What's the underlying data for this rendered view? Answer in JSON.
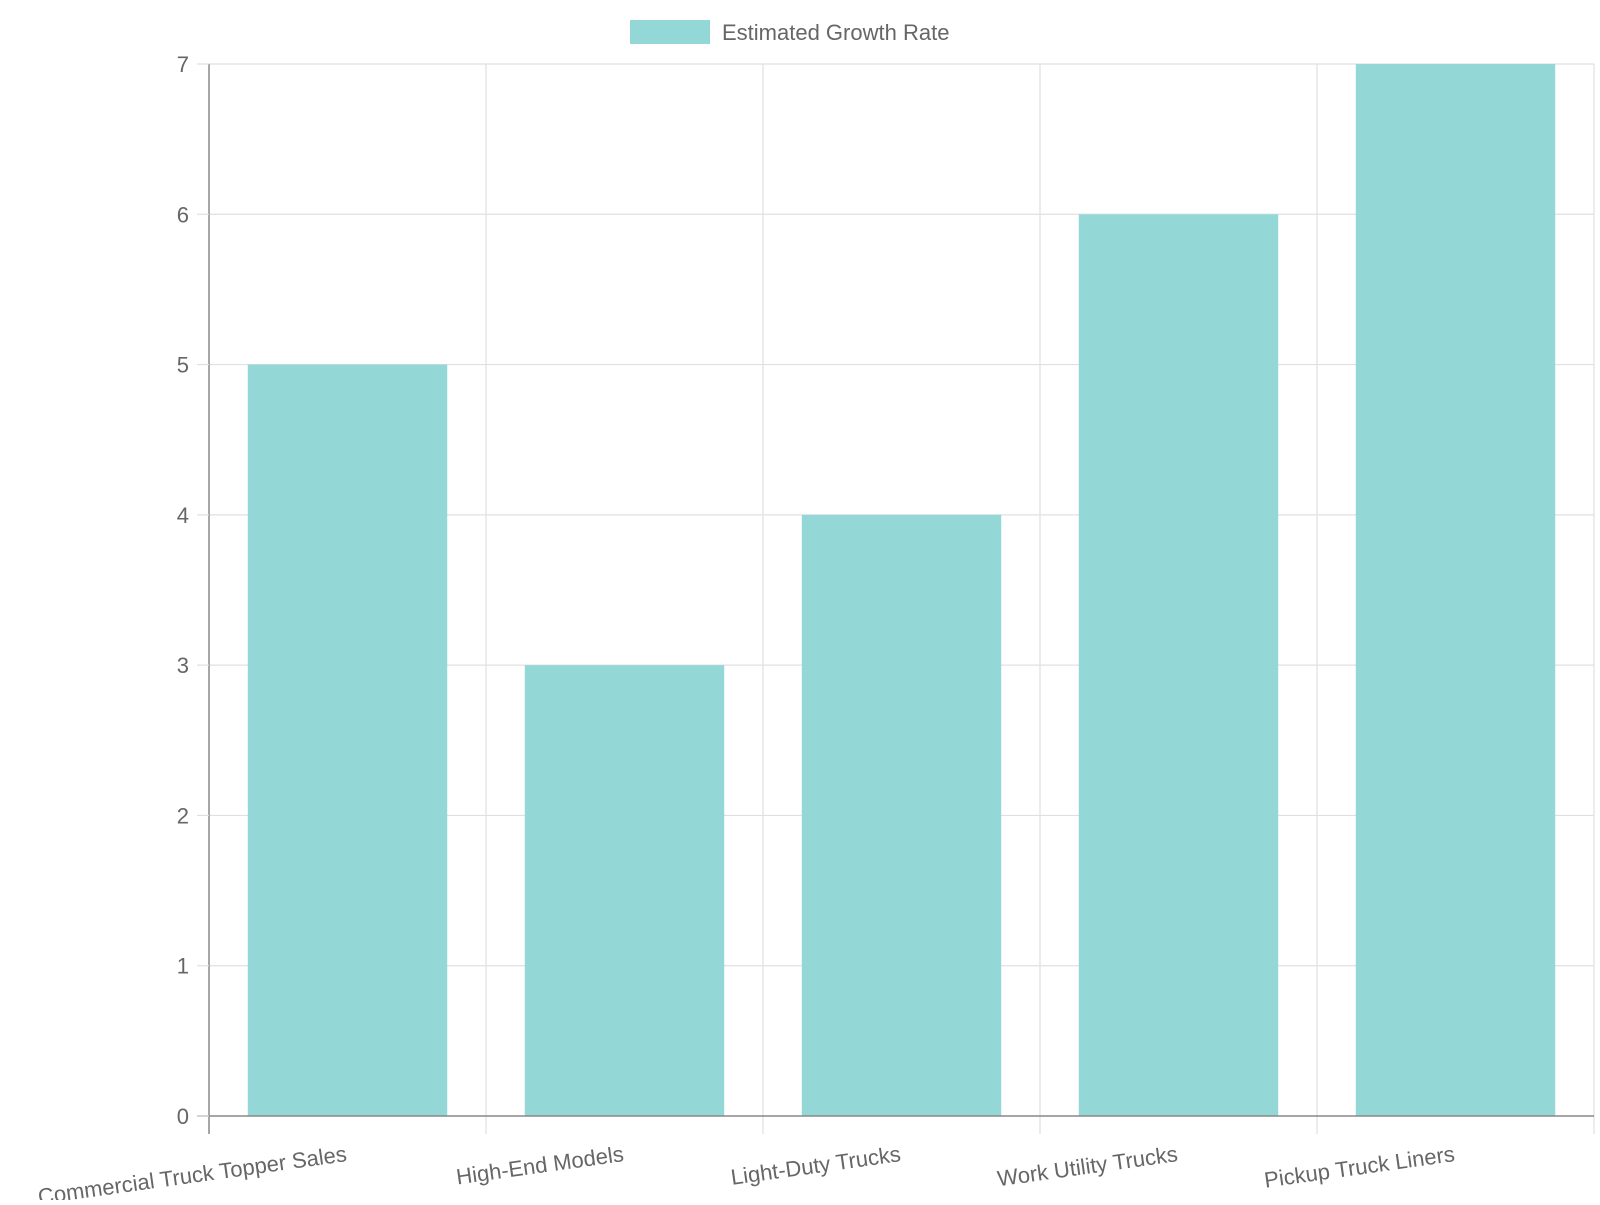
{
  "chart_data": {
    "type": "bar",
    "categories": [
      "Commercial Truck Topper Sales",
      "High-End Models",
      "Light-Duty Trucks",
      "Work Utility Trucks",
      "Pickup Truck Liners"
    ],
    "series": [
      {
        "name": "Estimated Growth Rate",
        "values": [
          5,
          3,
          4,
          6,
          7
        ]
      }
    ],
    "ylim": [
      0,
      7
    ],
    "y_ticks": [
      0,
      1,
      2,
      3,
      4,
      5,
      6,
      7
    ],
    "grid": true,
    "legend_position": "top-center",
    "colors": {
      "bar_fill": "#93d8d6",
      "grid": "#e0e0e0",
      "axis": "#888888",
      "text": "#666666"
    }
  }
}
